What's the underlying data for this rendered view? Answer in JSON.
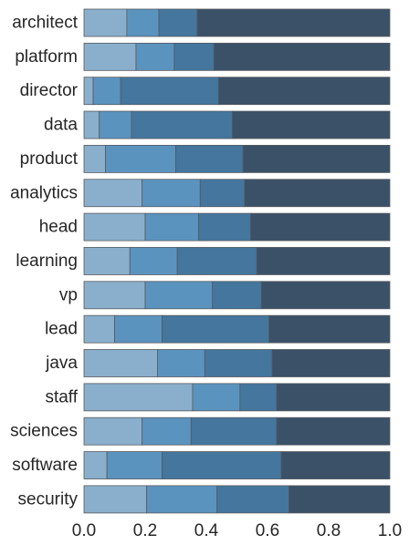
{
  "chart_data": {
    "type": "bar",
    "orientation": "horizontal",
    "stacked": true,
    "normalized": true,
    "categories": [
      "architect",
      "platform",
      "director",
      "data",
      "product",
      "analytics",
      "head",
      "learning",
      "vp",
      "lead",
      "java",
      "staff",
      "sciences",
      "software",
      "security"
    ],
    "series": [
      {
        "values": [
          0.14,
          0.17,
          0.03,
          0.05,
          0.07,
          0.19,
          0.2,
          0.15,
          0.2,
          0.1,
          0.24,
          0.355,
          0.19,
          0.075,
          0.205
        ]
      },
      {
        "values": [
          0.105,
          0.125,
          0.09,
          0.105,
          0.23,
          0.19,
          0.175,
          0.155,
          0.22,
          0.155,
          0.155,
          0.155,
          0.16,
          0.18,
          0.23
        ]
      },
      {
        "values": [
          0.125,
          0.13,
          0.32,
          0.33,
          0.22,
          0.145,
          0.17,
          0.26,
          0.16,
          0.35,
          0.22,
          0.12,
          0.28,
          0.39,
          0.235
        ]
      },
      {
        "values": [
          0.63,
          0.575,
          0.56,
          0.515,
          0.48,
          0.475,
          0.455,
          0.435,
          0.42,
          0.395,
          0.385,
          0.37,
          0.37,
          0.355,
          0.33
        ]
      }
    ],
    "colors": [
      "#8aafcc",
      "#5b93bf",
      "#44769e",
      "#3b5168"
    ],
    "xlim": [
      0,
      1.0
    ],
    "xticks": [
      "0.0",
      "0.2",
      "0.4",
      "0.6",
      "0.8",
      "1.0"
    ],
    "xlabel": "",
    "ylabel": "",
    "title": "",
    "grid": false,
    "legend": "none"
  }
}
